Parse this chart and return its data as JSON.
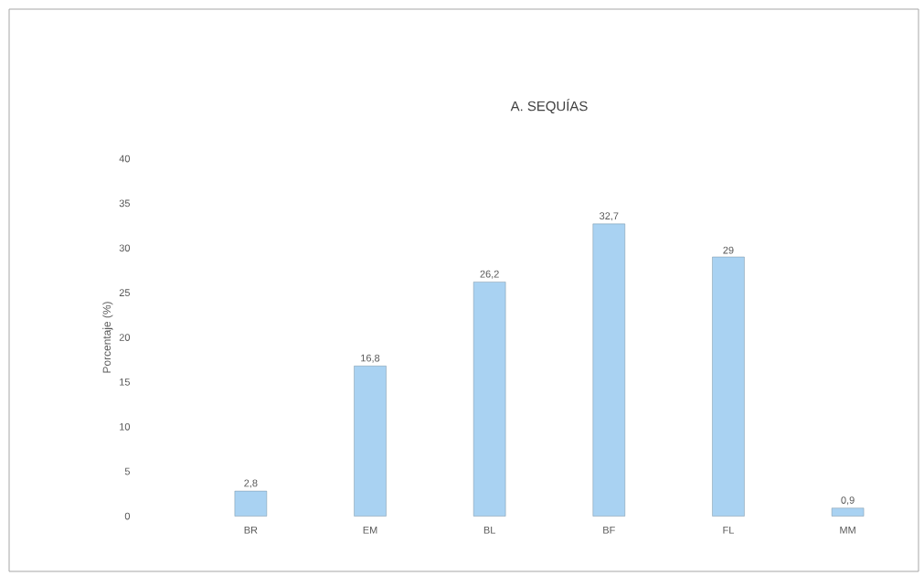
{
  "chart_data": {
    "type": "bar",
    "title": "A.  SEQUÍAS",
    "ylabel": "Porcentaje (%)",
    "categories": [
      "BR",
      "EM",
      "BL",
      "BF",
      "FL",
      "MM"
    ],
    "values": [
      2.8,
      16.8,
      26.2,
      32.7,
      29,
      0.9
    ],
    "value_labels": [
      "2,8",
      "16,8",
      "26,2",
      "32,7",
      "29",
      "0,9"
    ],
    "color": "#a9d2f2",
    "ylim": [
      0,
      40
    ],
    "yticks": [
      0,
      5,
      10,
      15,
      20,
      25,
      30,
      35,
      40
    ]
  }
}
